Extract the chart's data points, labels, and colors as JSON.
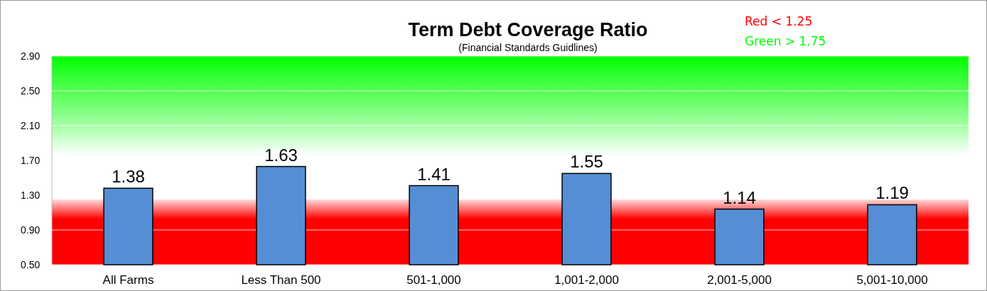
{
  "chart_data": {
    "type": "bar",
    "title": "Term Debt Coverage Ratio",
    "subtitle": "(Financial Standards Guidlines)",
    "categories": [
      "All Farms",
      "Less Than 500",
      "501-1,000",
      "1,001-2,000",
      "2,001-5,000",
      "5,001-10,000"
    ],
    "values": [
      1.38,
      1.63,
      1.41,
      1.55,
      1.14,
      1.19
    ],
    "color": "#558ed5",
    "data_labels": true,
    "ylim": [
      0.5,
      2.9
    ],
    "yticks": [
      {
        "value": 0.5,
        "label": "0.50"
      },
      {
        "value": 0.9,
        "label": "0.90"
      },
      {
        "value": 1.3,
        "label": "1.30"
      },
      {
        "value": 1.7,
        "label": "1.70"
      },
      {
        "value": 2.1,
        "label": "2.10"
      },
      {
        "value": 2.5,
        "label": "2.50"
      },
      {
        "value": 2.9,
        "label": "2.90"
      }
    ],
    "grid": "y",
    "bands": [
      {
        "axis": "y",
        "from": 0.5,
        "to": 1.25,
        "color": "#ff0000"
      },
      {
        "axis": "y",
        "from": 1.75,
        "to": 2.9,
        "color": "#00ff00"
      }
    ],
    "annotations": [
      "Red < 1.25",
      "Green > 1.75"
    ]
  }
}
